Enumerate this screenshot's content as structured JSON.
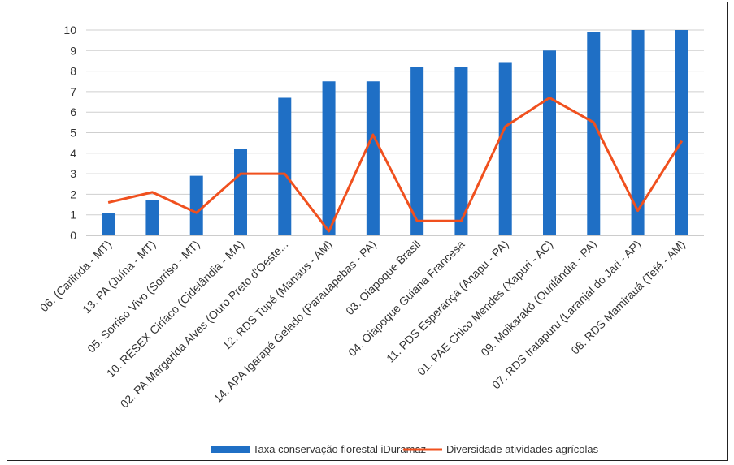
{
  "chart_data": {
    "type": "bar",
    "categories": [
      "06. (Carlinda - MT)",
      "13. PA (Juína - MT)",
      "05. Sorriso Vivo (Sorriso - MT)",
      "10. RESEX Ciríaco (Cidelândia - MA)",
      "02. PA Margarida Alves (Ouro Preto d'Oeste...",
      "12. RDS Tupé (Manaus - AM)",
      "14. APA Igarapé Gelado (Parauapebas - PA)",
      "03. Oiapoque Brasil",
      "04. Oiapoque Guiana Francesa",
      "11. PDS Esperança (Anapu - PA)",
      "01. PAE Chico Mendes (Xapuri - AC)",
      "09. Moikarakô (Ourilândia - PA)",
      "07. RDS Iratapuru (Laranjal do Jari - AP)",
      "08. RDS Mamirauá (Tefé - AM)"
    ],
    "series": [
      {
        "name": "Taxa conservação florestal iDuramaz",
        "type": "bar",
        "color": "#1f6fc5",
        "values": [
          1.1,
          1.7,
          2.9,
          4.2,
          6.7,
          7.5,
          7.5,
          8.2,
          8.2,
          8.4,
          9.0,
          9.9,
          10.0,
          10.0
        ]
      },
      {
        "name": "Diversidade atividades agrícolas",
        "type": "line",
        "color": "#f0501e",
        "values": [
          1.6,
          2.1,
          1.1,
          3.0,
          3.0,
          0.2,
          4.9,
          0.7,
          0.7,
          5.3,
          6.7,
          5.5,
          1.2,
          4.6
        ]
      }
    ],
    "yticks": [
      "0",
      "1",
      "2",
      "3",
      "4",
      "5",
      "6",
      "7",
      "8",
      "9",
      "10"
    ],
    "ylim": [
      0,
      10
    ],
    "grid": true,
    "legend_position": "bottom"
  }
}
